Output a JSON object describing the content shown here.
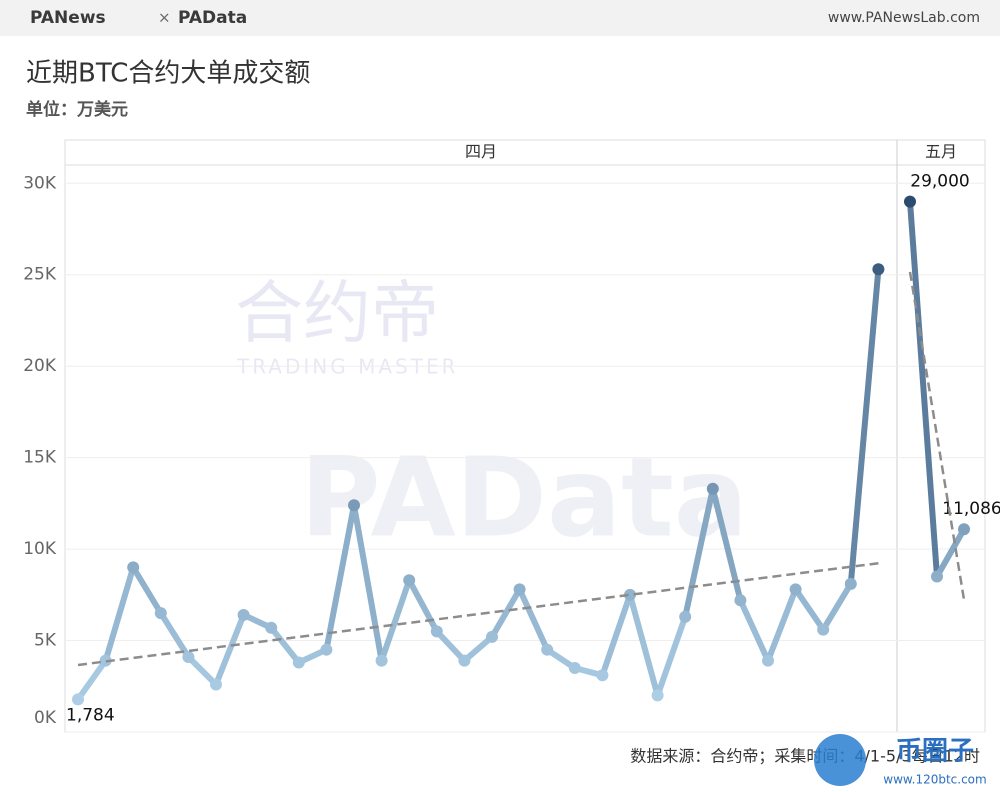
{
  "header": {
    "brand_left": "PANews",
    "separator": "×",
    "brand_right": "PAData",
    "site": "www.PANewsLab.com"
  },
  "chart_data": {
    "type": "line",
    "title": "近期BTC合约大单成交额",
    "subtitle": "单位：万美元",
    "panels": [
      {
        "name": "四月",
        "values": [
          1784,
          3900,
          9000,
          6500,
          4100,
          2600,
          6400,
          5700,
          3800,
          4500,
          12400,
          3900,
          8300,
          5500,
          3900,
          5200,
          7800,
          4500,
          3500,
          3100,
          7500,
          2000,
          6300,
          13300,
          7200,
          3900,
          7800,
          5600,
          8100,
          25300
        ],
        "value_labels": [
          "1,784",
          null,
          null,
          null,
          null,
          null,
          null,
          null,
          null,
          null,
          null,
          null,
          null,
          null,
          null,
          null,
          null,
          null,
          null,
          null,
          null,
          null,
          null,
          null,
          null,
          null,
          null,
          null,
          null,
          null
        ]
      },
      {
        "name": "五月",
        "values": [
          29000,
          8500,
          11086
        ],
        "value_labels": [
          "29,000",
          null,
          "11,086"
        ]
      }
    ],
    "ylim": [
      0,
      31000
    ],
    "yticks": [
      {
        "value": 0,
        "label": "0K"
      },
      {
        "value": 5000,
        "label": "5K"
      },
      {
        "value": 10000,
        "label": "10K"
      },
      {
        "value": 15000,
        "label": "15K"
      },
      {
        "value": 20000,
        "label": "20K"
      },
      {
        "value": 25000,
        "label": "25K"
      },
      {
        "value": 30000,
        "label": "30K"
      }
    ],
    "grid": true,
    "trend_line": true,
    "color_range": [
      "#b5d7ee",
      "#2b4b70"
    ],
    "trend_color": "#8c8c8c"
  },
  "footer": {
    "source": "数据来源：合约帝；采集时间：4/1-5/3每日12时"
  },
  "watermarks": {
    "brand": "合约帝",
    "brand_sub": "TRADING MASTER",
    "padata": "PAData",
    "corner": "币圈子",
    "corner_url": "www.120btc.com"
  }
}
